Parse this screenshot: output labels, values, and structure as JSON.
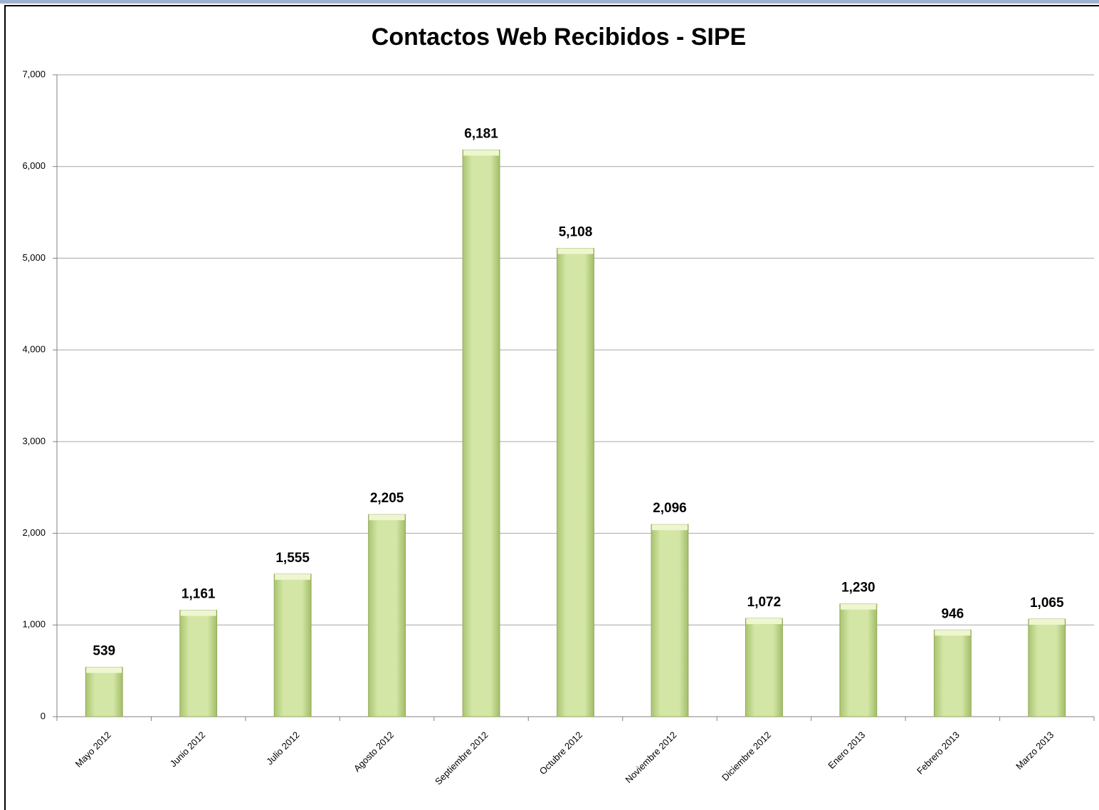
{
  "chart_data": {
    "type": "bar",
    "title": "Contactos Web Recibidos - SIPE",
    "categories": [
      "Mayo 2012",
      "Junio 2012",
      "Julio 2012",
      "Agosto 2012",
      "Septiembre 2012",
      "Octubre 2012",
      "Noviembre 2012",
      "Diciembre 2012",
      "Enero 2013",
      "Febrero 2013",
      "Marzo 2013"
    ],
    "values": [
      539,
      1161,
      1555,
      2205,
      6181,
      5108,
      2096,
      1072,
      1230,
      946,
      1065
    ],
    "value_labels": [
      "539",
      "1,161",
      "1,555",
      "2,205",
      "6,181",
      "5,108",
      "2,096",
      "1,072",
      "1,230",
      "946",
      "1,065"
    ],
    "color": "#cfe2a0",
    "ylim": [
      0,
      7000
    ],
    "yticks": [
      0,
      {
        "value": 1000,
        "label": "1,000"
      },
      {
        "value": 2000,
        "label": "2,000"
      },
      {
        "value": 3000,
        "label": "3,000"
      },
      {
        "value": 4000,
        "label": "4,000"
      },
      {
        "value": 5000,
        "label": "5,000"
      },
      {
        "value": 6000,
        "label": "6,000"
      },
      {
        "value": 7000,
        "label": "7,000"
      }
    ],
    "grid": true
  }
}
